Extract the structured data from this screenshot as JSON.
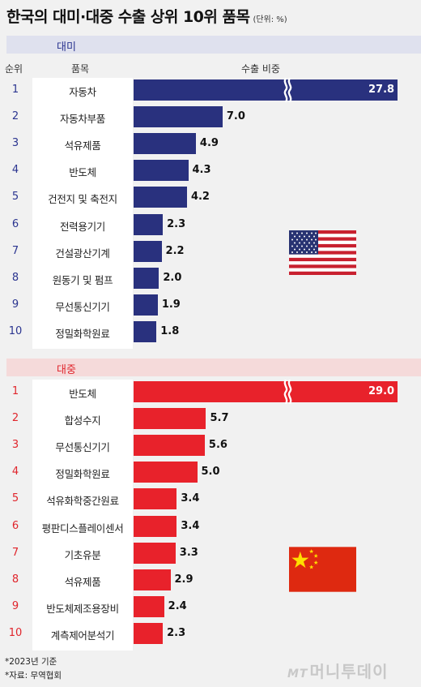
{
  "title": "한국의 대미·대중 수출 상위 10위 품목",
  "unit": "(단위: %)",
  "columns": {
    "rank": "순위",
    "item": "품목",
    "share": "수출 비중"
  },
  "colors": {
    "us_bar": "#29317e",
    "cn_bar": "#e8222b"
  },
  "chart_data": [
    {
      "type": "bar",
      "orientation": "horizontal",
      "title": "대미",
      "ranks": [
        "1",
        "2",
        "3",
        "4",
        "5",
        "6",
        "7",
        "8",
        "9",
        "10"
      ],
      "categories": [
        "자동차",
        "자동차부품",
        "석유제품",
        "반도체",
        "건전지 및 축전지",
        "전력용기기",
        "건설광산기계",
        "원동기 및 펌프",
        "무선통신기기",
        "정밀화학원료"
      ],
      "values": [
        27.8,
        7.0,
        4.9,
        4.3,
        4.2,
        2.3,
        2.2,
        2.0,
        1.9,
        1.8
      ],
      "labels": [
        "27.8",
        "7.0",
        "4.9",
        "4.3",
        "4.2",
        "2.3",
        "2.2",
        "2.0",
        "1.9",
        "1.8"
      ],
      "axis_break_on_first_bar": true,
      "flag": "us-flag-icon"
    },
    {
      "type": "bar",
      "orientation": "horizontal",
      "title": "대중",
      "ranks": [
        "1",
        "2",
        "3",
        "4",
        "5",
        "6",
        "7",
        "8",
        "9",
        "10"
      ],
      "categories": [
        "반도체",
        "합성수지",
        "무선통신기기",
        "정밀화학원료",
        "석유화학중간원료",
        "평판디스플레이센서",
        "기초유분",
        "석유제품",
        "반도체제조용장비",
        "계측제어분석기"
      ],
      "values": [
        29.0,
        5.7,
        5.6,
        5.0,
        3.4,
        3.4,
        3.3,
        2.9,
        2.4,
        2.3
      ],
      "labels": [
        "29.0",
        "5.7",
        "5.6",
        "5.0",
        "3.4",
        "3.4",
        "3.3",
        "2.9",
        "2.4",
        "2.3"
      ],
      "axis_break_on_first_bar": true,
      "flag": "china-flag-icon"
    }
  ],
  "footnotes": [
    "*2023년 기준",
    "*자료: 무역협회"
  ],
  "logo": {
    "mt": "MT",
    "name": "머니투데이"
  }
}
